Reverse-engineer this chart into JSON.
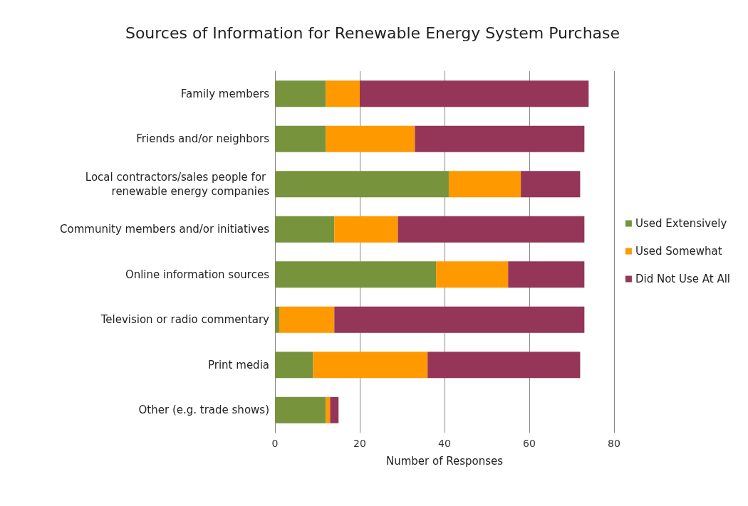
{
  "chart_data": {
    "type": "bar",
    "orientation": "horizontal",
    "stacked": true,
    "title": "Sources of Information for Renewable Energy System Purchase",
    "xlabel": "Number of Responses",
    "categories": [
      "Family members",
      "Friends and/or neighbors",
      "Local contractors/sales people for renewable energy companies",
      "Community members and/or initiatives",
      "Online information sources",
      "Television or radio commentary",
      "Print media",
      "Other (e.g. trade shows)"
    ],
    "series": [
      {
        "name": "Used Extensively",
        "color": "#77933c",
        "values": [
          12,
          12,
          41,
          14,
          38,
          1,
          9,
          12
        ]
      },
      {
        "name": "Used Somewhat",
        "color": "#ff9900",
        "values": [
          8,
          21,
          17,
          15,
          17,
          13,
          27,
          1
        ]
      },
      {
        "name": "Did Not Use At All",
        "color": "#953558",
        "values": [
          54,
          40,
          14,
          44,
          18,
          59,
          36,
          2
        ]
      }
    ],
    "xlim": [
      0,
      80
    ],
    "xticks": [
      0,
      20,
      40,
      60,
      80
    ],
    "grid": "x",
    "legend": "right"
  }
}
